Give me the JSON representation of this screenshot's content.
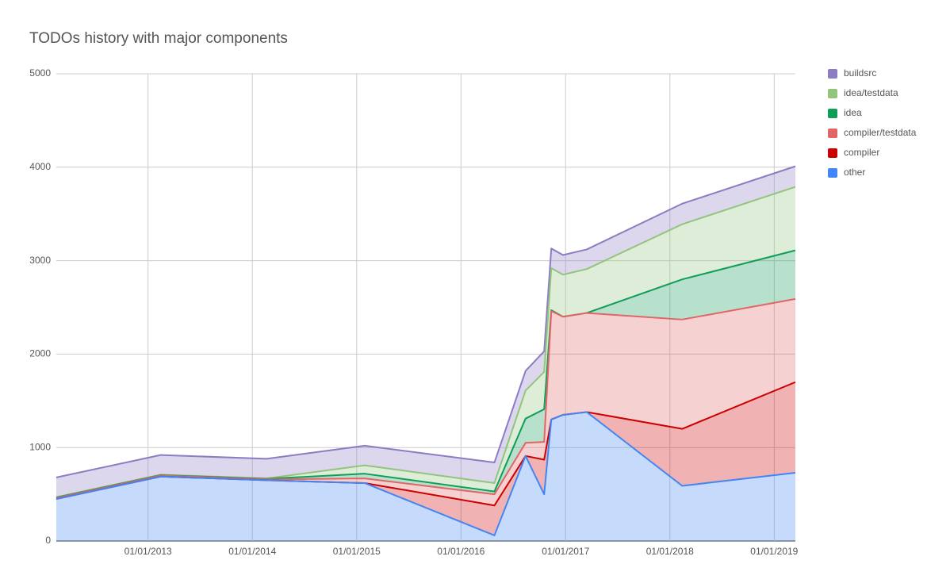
{
  "chart_data": {
    "type": "stacked-area",
    "title": "TODOs history with major components",
    "x": [
      "2012-02-15",
      "2013-02-14",
      "2014-02-20",
      "2015-01-29",
      "2016-04-27",
      "2016-08-14",
      "2016-10-18",
      "2016-11-12",
      "2016-12-23",
      "2017-03-16",
      "2018-02-13",
      "2019-03-16"
    ],
    "series": [
      {
        "name": "other",
        "color": "#4285f4",
        "values": [
          450,
          690,
          650,
          620,
          60,
          910,
          500,
          1300,
          1350,
          1380,
          590,
          730
        ]
      },
      {
        "name": "compiler",
        "color": "#cc0000",
        "values": [
          0,
          0,
          0,
          0,
          320,
          0,
          370,
          0,
          0,
          0,
          610,
          970
        ]
      },
      {
        "name": "compiler/testdata",
        "color": "#e06666",
        "values": [
          10,
          10,
          10,
          50,
          120,
          140,
          190,
          1160,
          1050,
          1060,
          1170,
          890
        ]
      },
      {
        "name": "idea",
        "color": "#0f9d58",
        "values": [
          5,
          5,
          5,
          50,
          30,
          260,
          350,
          10,
          0,
          0,
          430,
          520
        ]
      },
      {
        "name": "idea/testdata",
        "color": "#93c47d",
        "values": [
          5,
          5,
          5,
          90,
          90,
          300,
          400,
          450,
          450,
          470,
          590,
          680
        ]
      },
      {
        "name": "buildsrc",
        "color": "#8e7cc3",
        "values": [
          210,
          210,
          210,
          210,
          220,
          210,
          220,
          210,
          210,
          210,
          220,
          220
        ]
      }
    ],
    "xlim": [
      "2012-02-15",
      "2019-03-16"
    ],
    "xticks": [
      {
        "value": "2013-01-01",
        "label": "01/01/2013"
      },
      {
        "value": "2014-01-01",
        "label": "01/01/2014"
      },
      {
        "value": "2015-01-01",
        "label": "01/01/2015"
      },
      {
        "value": "2016-01-01",
        "label": "01/01/2016"
      },
      {
        "value": "2017-01-01",
        "label": "01/01/2017"
      },
      {
        "value": "2018-01-01",
        "label": "01/01/2018"
      },
      {
        "value": "2019-01-01",
        "label": "01/01/2019"
      }
    ],
    "ylim": [
      0,
      5000
    ],
    "yticks": [
      0,
      1000,
      2000,
      3000,
      4000,
      5000
    ],
    "grid": true,
    "legend": "right"
  }
}
